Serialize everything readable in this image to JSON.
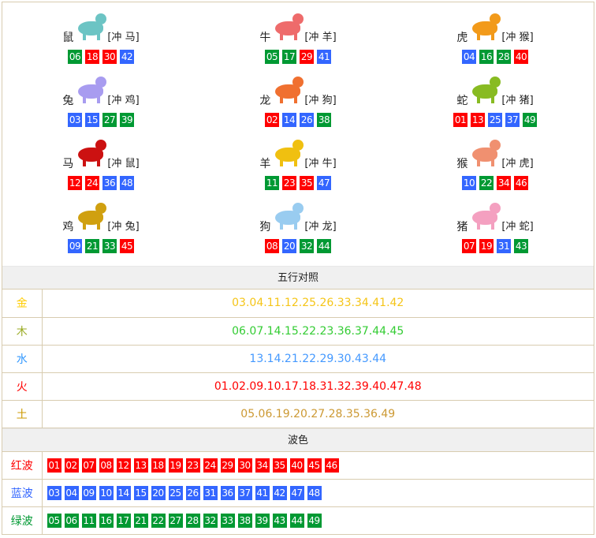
{
  "colors": {
    "red": "#ff0000",
    "blue": "#3366ff",
    "green": "#009933"
  },
  "zodiac": [
    {
      "name": "鼠",
      "icon": "rat-icon",
      "img_color": "#6cc4c4",
      "chong": "[冲 马]",
      "nums": [
        "06",
        "18",
        "30",
        "42"
      ]
    },
    {
      "name": "牛",
      "icon": "ox-icon",
      "img_color": "#ee6b6b",
      "chong": "[冲 羊]",
      "nums": [
        "05",
        "17",
        "29",
        "41"
      ]
    },
    {
      "name": "虎",
      "icon": "tiger-icon",
      "img_color": "#f29a1a",
      "chong": "[冲 猴]",
      "nums": [
        "04",
        "16",
        "28",
        "40"
      ]
    },
    {
      "name": "兔",
      "icon": "rabbit-icon",
      "img_color": "#a89cf0",
      "chong": "[冲 鸡]",
      "nums": [
        "03",
        "15",
        "27",
        "39"
      ]
    },
    {
      "name": "龙",
      "icon": "dragon-icon",
      "img_color": "#f07030",
      "chong": "[冲 狗]",
      "nums": [
        "02",
        "14",
        "26",
        "38"
      ]
    },
    {
      "name": "蛇",
      "icon": "snake-icon",
      "img_color": "#88bb22",
      "chong": "[冲 猪]",
      "nums": [
        "01",
        "13",
        "25",
        "37",
        "49"
      ]
    },
    {
      "name": "马",
      "icon": "horse-icon",
      "img_color": "#cc1111",
      "chong": "[冲 鼠]",
      "nums": [
        "12",
        "24",
        "36",
        "48"
      ]
    },
    {
      "name": "羊",
      "icon": "goat-icon",
      "img_color": "#f0c010",
      "chong": "[冲 牛]",
      "nums": [
        "11",
        "23",
        "35",
        "47"
      ]
    },
    {
      "name": "猴",
      "icon": "monkey-icon",
      "img_color": "#f09070",
      "chong": "[冲 虎]",
      "nums": [
        "10",
        "22",
        "34",
        "46"
      ]
    },
    {
      "name": "鸡",
      "icon": "rooster-icon",
      "img_color": "#d0a010",
      "chong": "[冲 兔]",
      "nums": [
        "09",
        "21",
        "33",
        "45"
      ]
    },
    {
      "name": "狗",
      "icon": "dog-icon",
      "img_color": "#99ccf0",
      "chong": "[冲 龙]",
      "nums": [
        "08",
        "20",
        "32",
        "44"
      ]
    },
    {
      "name": "猪",
      "icon": "pig-icon",
      "img_color": "#f4a0c0",
      "chong": "[冲 蛇]",
      "nums": [
        "07",
        "19",
        "31",
        "43"
      ]
    }
  ],
  "wuxing": {
    "title": "五行对照",
    "rows": [
      {
        "label": "金",
        "label_color": "#ffcc00",
        "color": "#f5c518",
        "nums": "03.04.11.12.25.26.33.34.41.42"
      },
      {
        "label": "木",
        "label_color": "#99aa22",
        "color": "#33cc33",
        "nums": "06.07.14.15.22.23.36.37.44.45"
      },
      {
        "label": "水",
        "label_color": "#3399ff",
        "color": "#4499ff",
        "nums": "13.14.21.22.29.30.43.44"
      },
      {
        "label": "火",
        "label_color": "#ff0000",
        "color": "#ff0000",
        "nums": "01.02.09.10.17.18.31.32.39.40.47.48"
      },
      {
        "label": "土",
        "label_color": "#cc9900",
        "color": "#cc9933",
        "nums": "05.06.19.20.27.28.35.36.49"
      }
    ]
  },
  "bose": {
    "title": "波色",
    "rows": [
      {
        "label": "红波",
        "wave": "red",
        "nums": [
          "01",
          "02",
          "07",
          "08",
          "12",
          "13",
          "18",
          "19",
          "23",
          "24",
          "29",
          "30",
          "34",
          "35",
          "40",
          "45",
          "46"
        ]
      },
      {
        "label": "蓝波",
        "wave": "blue",
        "nums": [
          "03",
          "04",
          "09",
          "10",
          "14",
          "15",
          "20",
          "25",
          "26",
          "31",
          "36",
          "37",
          "41",
          "42",
          "47",
          "48"
        ]
      },
      {
        "label": "绿波",
        "wave": "green",
        "nums": [
          "05",
          "06",
          "11",
          "16",
          "17",
          "21",
          "22",
          "27",
          "28",
          "32",
          "33",
          "38",
          "39",
          "43",
          "44",
          "49"
        ]
      }
    ]
  }
}
